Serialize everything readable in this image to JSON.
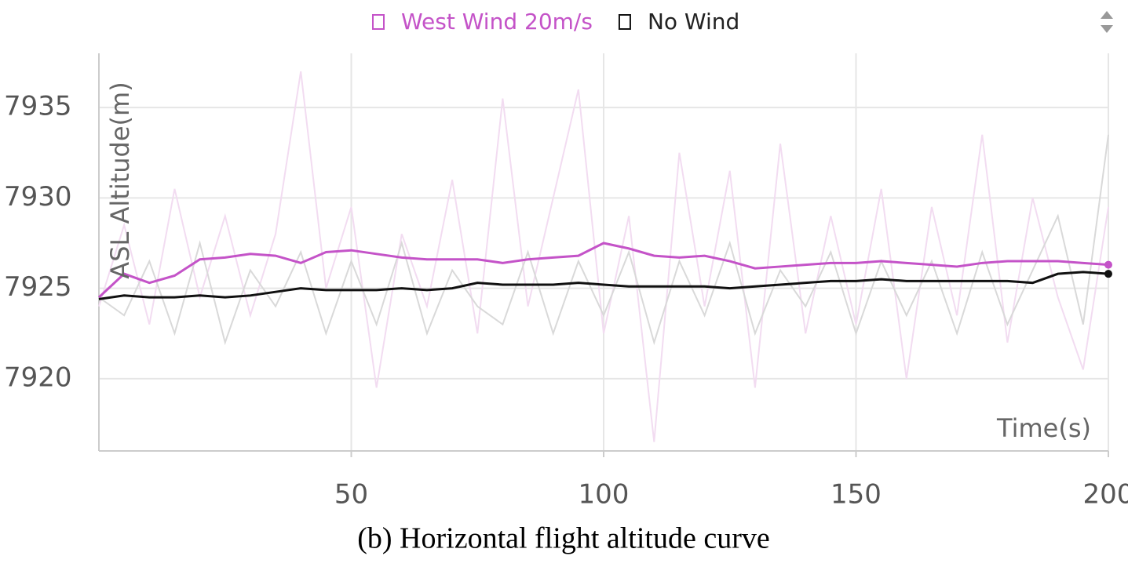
{
  "chart_data": {
    "type": "line",
    "caption": "(b) Horizontal flight altitude curve",
    "x_label": "Time(s)",
    "y_label": "ASL Altitude(m)",
    "x": [
      0,
      5,
      10,
      15,
      20,
      25,
      30,
      35,
      40,
      45,
      50,
      55,
      60,
      65,
      70,
      75,
      80,
      85,
      90,
      95,
      100,
      105,
      110,
      115,
      120,
      125,
      130,
      135,
      140,
      145,
      150,
      155,
      160,
      165,
      170,
      175,
      180,
      185,
      190,
      195,
      200
    ],
    "series": [
      {
        "name": "West Wind 20m/s",
        "color": "#c453c8",
        "raw_color": "#f2dcf1",
        "values": [
          7924.5,
          7925.8,
          7925.3,
          7925.7,
          7926.6,
          7926.7,
          7926.9,
          7926.8,
          7926.4,
          7927.0,
          7927.1,
          7926.9,
          7926.7,
          7926.6,
          7926.6,
          7926.6,
          7926.4,
          7926.6,
          7926.7,
          7926.8,
          7927.5,
          7927.2,
          7926.8,
          7926.7,
          7926.8,
          7926.5,
          7926.1,
          7926.2,
          7926.3,
          7926.4,
          7926.4,
          7926.5,
          7926.4,
          7926.3,
          7926.2,
          7926.4,
          7926.5,
          7926.5,
          7926.5,
          7926.4,
          7926.3
        ],
        "raw_values": [
          7924.0,
          7928.5,
          7923.0,
          7930.5,
          7924.5,
          7929.0,
          7923.5,
          7928.0,
          7937.0,
          7925.0,
          7929.5,
          7919.5,
          7928.0,
          7924.0,
          7931.0,
          7922.5,
          7935.5,
          7924.0,
          7930.0,
          7936.0,
          7922.5,
          7929.0,
          7916.5,
          7932.5,
          7924.0,
          7931.5,
          7919.5,
          7933.0,
          7922.5,
          7929.0,
          7923.0,
          7930.5,
          7920.0,
          7929.5,
          7923.5,
          7933.5,
          7922.0,
          7930.0,
          7924.5,
          7920.5,
          7929.5
        ]
      },
      {
        "name": "No Wind",
        "color": "#111111",
        "raw_color": "#d9d9d9",
        "values": [
          7924.4,
          7924.6,
          7924.5,
          7924.5,
          7924.6,
          7924.5,
          7924.6,
          7924.8,
          7925.0,
          7924.9,
          7924.9,
          7924.9,
          7925.0,
          7924.9,
          7925.0,
          7925.3,
          7925.2,
          7925.2,
          7925.2,
          7925.3,
          7925.2,
          7925.1,
          7925.1,
          7925.1,
          7925.1,
          7925.0,
          7925.1,
          7925.2,
          7925.3,
          7925.4,
          7925.4,
          7925.5,
          7925.4,
          7925.4,
          7925.4,
          7925.4,
          7925.4,
          7925.3,
          7925.8,
          7925.9,
          7925.8
        ],
        "raw_values": [
          7924.5,
          7923.5,
          7926.5,
          7922.5,
          7927.5,
          7922.0,
          7926.0,
          7924.0,
          7927.0,
          7922.5,
          7926.5,
          7923.0,
          7927.5,
          7922.5,
          7926.0,
          7924.0,
          7923.0,
          7927.0,
          7922.5,
          7926.5,
          7923.5,
          7927.0,
          7922.0,
          7926.5,
          7923.5,
          7927.5,
          7922.5,
          7926.0,
          7924.0,
          7927.0,
          7922.5,
          7926.5,
          7923.5,
          7926.5,
          7922.5,
          7927.0,
          7923.0,
          7926.0,
          7929.0,
          7923.0,
          7933.5
        ]
      }
    ],
    "xlim": [
      0,
      200
    ],
    "ylim": [
      7916,
      7938
    ],
    "xticks": [
      50,
      100,
      150,
      200
    ],
    "yticks": [
      7920,
      7925,
      7930,
      7935
    ],
    "grid": true
  }
}
